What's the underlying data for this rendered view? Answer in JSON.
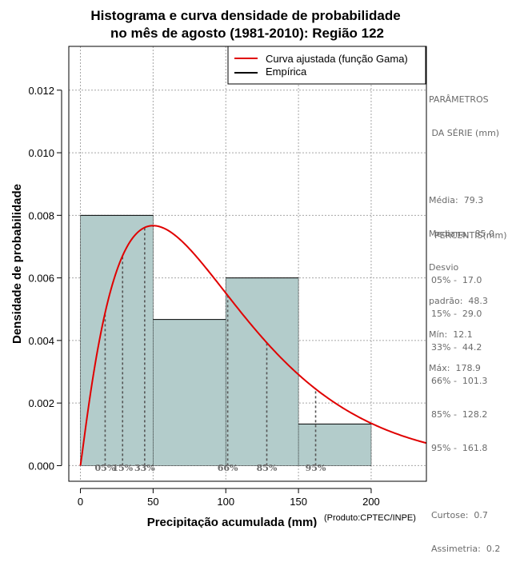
{
  "chart_data": {
    "type": "histogram",
    "title_line1": "Histograma e curva densidade de probabilidade",
    "title_line2": "no mês de agosto (1981-2010): Região 122",
    "xlabel": "Precipitação acumulada (mm)",
    "ylabel": "Densidade de probabilidade",
    "credit": "(Produto:CPTEC/INPE)",
    "xlim": [
      -8,
      238
    ],
    "ylim": [
      -0.0005,
      0.0134
    ],
    "x_ticks": [
      0,
      50,
      100,
      150,
      200
    ],
    "x_tick_labels": [
      "0",
      "50",
      "100",
      "150",
      "200"
    ],
    "y_ticks": [
      0.0,
      0.002,
      0.004,
      0.006,
      0.008,
      0.01,
      0.012
    ],
    "y_tick_labels": [
      "0.000",
      "0.002",
      "0.004",
      "0.006",
      "0.008",
      "0.010",
      "0.012"
    ],
    "grid": true,
    "bins": [
      {
        "from": 0,
        "to": 50,
        "density": 0.008
      },
      {
        "from": 50,
        "to": 100,
        "density": 0.00467
      },
      {
        "from": 100,
        "to": 150,
        "density": 0.006
      },
      {
        "from": 150,
        "to": 200,
        "density": 0.00133
      }
    ],
    "gamma_fit": {
      "name": "Curva ajustada (função Gama)",
      "shape": 2.075,
      "rate": 0.0215,
      "color": "#e00000"
    },
    "series": [
      {
        "name": "Curva ajustada (função Gama)",
        "color": "#e00000"
      },
      {
        "name": "Empírica",
        "color": "#000000"
      }
    ],
    "legend_position": "top-right",
    "bar_fill": "#b3cccb",
    "percentiles": [
      {
        "label": "05%",
        "value": 17.0
      },
      {
        "label": "15%",
        "value": 29.0
      },
      {
        "label": "33%",
        "value": 44.2
      },
      {
        "label": "66%",
        "value": 101.3
      },
      {
        "label": "85%",
        "value": 128.2
      },
      {
        "label": "95%",
        "value": 161.8
      }
    ]
  },
  "sidebar": {
    "params_title_1": "PARÂMETROS",
    "params_title_2": " DA SÉRIE (mm)",
    "media": "Média:  79.3",
    "mediana": "Mediana:  85.0",
    "desvio_1": "Desvio",
    "desvio_2": "padrão:  48.3",
    "min": "Mín:  12.1",
    "max": "Máx:  178.9",
    "percentis_title": "PERCENTIS(mm)",
    "p05": "05% -  17.0",
    "p15": "15% -  29.0",
    "p33": "33% -  44.2",
    "p66": "66% -  101.3",
    "p85": "85% -  128.2",
    "p95": "95% -  161.8",
    "curtose": "Curtose:  0.7",
    "assimetria": "Assimetria:  0.2"
  }
}
